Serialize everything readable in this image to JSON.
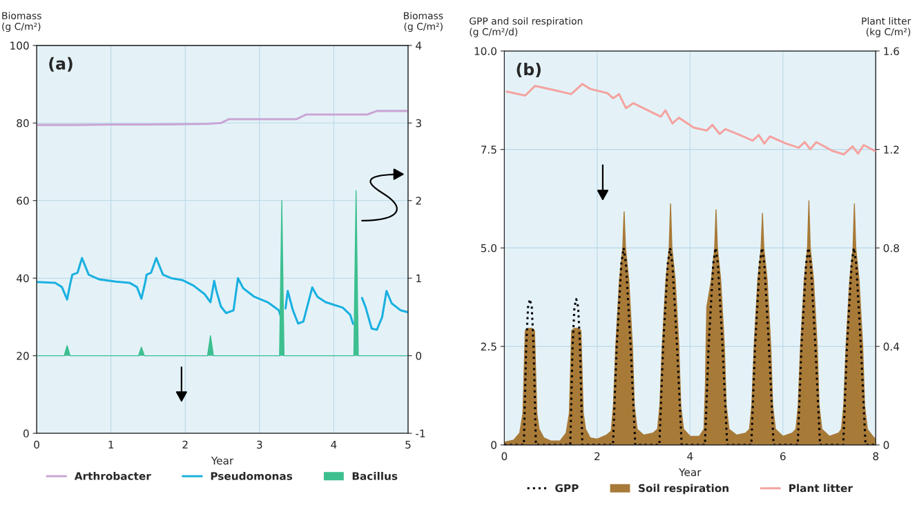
{
  "chart_data": [
    {
      "type": "line",
      "annotations": [
        "(a)"
      ],
      "xlabel": "Year",
      "ylabel": "Biomass\n(g C/m²)",
      "y2label": "Biomass\n(g C/m²)",
      "xlim": [
        0,
        5
      ],
      "xticks": [
        0,
        1,
        2,
        3,
        4,
        5
      ],
      "ylim": [
        0,
        100
      ],
      "yticks": [
        0,
        20,
        40,
        60,
        80,
        100
      ],
      "y2lim": [
        -1,
        4
      ],
      "y2ticks": [
        -1,
        0,
        1,
        2,
        3,
        4
      ],
      "grid": true,
      "legend": "bottom",
      "series": [
        {
          "name": "Arthrobacter",
          "color": "#c9a6d4",
          "type": "line",
          "line_style": "solid",
          "x": [
            0,
            0.5,
            1,
            1.5,
            2,
            2.3,
            2.48,
            2.59,
            3,
            3.5,
            3.63,
            4,
            4.45,
            4.58,
            5
          ],
          "values": [
            79.5,
            79.5,
            79.6,
            79.6,
            79.7,
            79.8,
            80.0,
            81.0,
            81.0,
            81.0,
            82.2,
            82.2,
            82.2,
            83.1,
            83.1
          ]
        },
        {
          "name": "Pseudomonas",
          "color": "#1ab0e0",
          "type": "line",
          "line_style": "solid",
          "x": [
            0,
            0.25,
            0.34,
            0.41,
            0.45,
            0.48,
            0.55,
            0.61,
            0.7,
            0.84,
            1.07,
            1.25,
            1.35,
            1.41,
            1.46,
            1.48,
            1.54,
            1.61,
            1.7,
            1.81,
            1.96,
            2.11,
            2.26,
            2.34,
            2.39,
            2.42,
            2.48,
            2.55,
            2.65,
            2.71,
            2.78,
            2.93,
            3.11,
            3.26,
            3.29,
            3.32,
            3.35,
            3.38,
            3.45,
            3.52,
            3.59,
            3.71,
            3.78,
            3.89,
            4.12,
            4.22,
            4.26,
            4.3,
            4.38,
            4.43,
            4.51,
            4.58,
            4.65,
            4.71,
            4.78,
            4.9,
            5
          ],
          "values": [
            39.0,
            38.8,
            37.7,
            34.5,
            38.4,
            40.9,
            41.4,
            45.2,
            40.9,
            39.7,
            39.1,
            38.8,
            37.7,
            34.7,
            38.8,
            40.9,
            41.4,
            45.2,
            40.9,
            40.0,
            39.5,
            38.1,
            35.9,
            33.8,
            39.3,
            36.7,
            32.7,
            31.0,
            31.7,
            40.0,
            37.4,
            35.2,
            33.8,
            31.7,
            29.9,
            null,
            32.2,
            36.7,
            31.7,
            28.3,
            28.8,
            37.6,
            35.2,
            33.8,
            32.4,
            30.6,
            28.2,
            null,
            34.9,
            32.4,
            27.0,
            26.7,
            29.9,
            36.7,
            33.5,
            31.7,
            31.2
          ]
        },
        {
          "name": "Bacillus",
          "color": "#3dbf8f",
          "type": "area",
          "axis": "y2",
          "x": [
            0,
            0.37,
            0.41,
            0.45,
            1.37,
            1.41,
            1.45,
            2.3,
            2.34,
            2.38,
            3.27,
            3.3,
            3.33,
            4.27,
            4.3,
            4.33,
            5
          ],
          "values": [
            0,
            0,
            0.13,
            0,
            0,
            0.11,
            0,
            0,
            0.26,
            0,
            0,
            2.0,
            0,
            0,
            2.13,
            0,
            0
          ]
        }
      ]
    },
    {
      "type": "line",
      "annotations": [
        "(b)"
      ],
      "xlabel": "Year",
      "ylabel": "GPP and soil respiration\n(g C/m²/d)",
      "y2label": "Plant litter\n(kg C/m²)",
      "xlim": [
        0,
        8
      ],
      "xticks": [
        0,
        2,
        4,
        6,
        8
      ],
      "ylim": [
        0,
        10
      ],
      "yticks": [
        0,
        2.5,
        {
          "value": 5,
          "label": "5.0"
        },
        {
          "value": 7.5,
          "label": "7.5"
        },
        {
          "value": 10,
          "label": "10.0"
        }
      ],
      "y2lim": [
        0,
        1.6
      ],
      "y2ticks": [
        0,
        0.4,
        0.8,
        1.2,
        1.6
      ],
      "grid": true,
      "legend": "bottom",
      "series": [
        {
          "name": "GPP",
          "color": "#000000",
          "type": "line",
          "line_style": "dotted",
          "x": [
            0,
            0.42,
            0.47,
            0.51,
            0.55,
            0.59,
            0.63,
            0.68,
            1.42,
            1.47,
            1.51,
            1.55,
            1.59,
            1.63,
            1.68,
            2.34,
            2.42,
            2.52,
            2.57,
            2.62,
            2.72,
            2.82,
            3.34,
            3.42,
            3.52,
            3.57,
            3.62,
            3.72,
            3.82,
            4.32,
            4.4,
            4.5,
            4.55,
            4.6,
            4.7,
            4.8,
            5.32,
            5.4,
            5.5,
            5.55,
            5.6,
            5.7,
            5.8,
            6.32,
            6.4,
            6.5,
            6.55,
            6.6,
            6.7,
            6.8,
            7.3,
            7.38,
            7.48,
            7.53,
            7.58,
            7.68,
            7.78,
            8
          ],
          "values": [
            0,
            0,
            2.5,
            3.5,
            3.7,
            3.5,
            2.5,
            0,
            0,
            2.5,
            3.5,
            3.7,
            3.5,
            2.5,
            0,
            0,
            2.5,
            4.6,
            5,
            4.6,
            2.5,
            0,
            0,
            2.5,
            4.6,
            5,
            4.6,
            2.5,
            0,
            0,
            2.5,
            4.6,
            5,
            4.6,
            2.5,
            0,
            0,
            2.5,
            4.6,
            5,
            4.6,
            2.5,
            0,
            0,
            2.5,
            4.6,
            5,
            4.6,
            2.5,
            0,
            0,
            2.5,
            4.6,
            5,
            4.6,
            2.5,
            0,
            0
          ]
        },
        {
          "name": "Soil respiration",
          "color": "#a87a38",
          "type": "area",
          "x": [
            0,
            0.2,
            0.33,
            0.4,
            0.45,
            0.5,
            0.6,
            0.65,
            0.7,
            0.75,
            0.85,
            1.0,
            1.2,
            1.33,
            1.4,
            1.45,
            1.5,
            1.6,
            1.65,
            1.7,
            1.75,
            1.85,
            2.0,
            2.2,
            2.3,
            2.35,
            2.4,
            2.48,
            2.55,
            2.58,
            2.61,
            2.68,
            2.76,
            2.8,
            2.86,
            3.0,
            3.2,
            3.3,
            3.35,
            3.4,
            3.48,
            3.55,
            3.58,
            3.61,
            3.68,
            3.76,
            3.8,
            3.86,
            4.0,
            4.2,
            4.3,
            4.33,
            4.36,
            4.46,
            4.53,
            4.56,
            4.59,
            4.66,
            4.74,
            4.78,
            4.84,
            5.0,
            5.2,
            5.28,
            5.33,
            5.38,
            5.46,
            5.53,
            5.56,
            5.59,
            5.66,
            5.74,
            5.78,
            5.84,
            6.0,
            6.2,
            6.28,
            6.33,
            6.38,
            6.46,
            6.53,
            6.56,
            6.59,
            6.66,
            6.74,
            6.78,
            6.84,
            7.0,
            7.2,
            7.26,
            7.31,
            7.36,
            7.44,
            7.51,
            7.54,
            7.57,
            7.64,
            7.72,
            7.76,
            7.82,
            7.95,
            8.0
          ],
          "values": [
            0.07,
            0.12,
            0.3,
            0.8,
            2.9,
            2.96,
            2.96,
            2.9,
            0.8,
            0.4,
            0.18,
            0.1,
            0.1,
            0.3,
            0.8,
            2.9,
            2.96,
            2.96,
            2.9,
            0.8,
            0.4,
            0.18,
            0.15,
            0.25,
            0.35,
            1.0,
            2.5,
            4.2,
            5.0,
            5.92,
            5.0,
            4.2,
            2.5,
            1.0,
            0.4,
            0.25,
            0.3,
            0.4,
            1.0,
            2.5,
            4.2,
            5.0,
            6.12,
            5.0,
            4.2,
            2.5,
            1.0,
            0.4,
            0.22,
            0.22,
            0.4,
            1.5,
            3.5,
            4.2,
            5.0,
            5.97,
            5.0,
            4.2,
            2.5,
            1.0,
            0.4,
            0.25,
            0.3,
            0.4,
            1.0,
            2.5,
            4.2,
            5.0,
            5.88,
            5.0,
            4.2,
            2.5,
            1.0,
            0.4,
            0.22,
            0.3,
            0.4,
            1.0,
            2.5,
            4.2,
            5.0,
            6.2,
            5.0,
            4.2,
            2.5,
            1.0,
            0.4,
            0.22,
            0.3,
            0.4,
            1.0,
            2.5,
            4.2,
            5.0,
            6.12,
            5.0,
            4.2,
            2.5,
            1.0,
            0.4,
            0.2,
            0.15
          ]
        },
        {
          "name": "Plant litter",
          "color": "#f4a3a0",
          "type": "line",
          "line_style": "solid",
          "axis": "y2",
          "x": [
            0.05,
            0.45,
            0.66,
            1.1,
            1.44,
            1.68,
            1.85,
            2.22,
            2.34,
            2.47,
            2.62,
            2.78,
            3.09,
            3.37,
            3.47,
            3.62,
            3.76,
            4.08,
            4.36,
            4.48,
            4.64,
            4.76,
            5.07,
            5.35,
            5.48,
            5.6,
            5.72,
            6.07,
            6.34,
            6.47,
            6.59,
            6.72,
            7.06,
            7.31,
            7.5,
            7.62,
            7.74,
            7.99
          ],
          "values": [
            1.435,
            1.419,
            1.458,
            1.44,
            1.425,
            1.466,
            1.446,
            1.429,
            1.408,
            1.425,
            1.368,
            1.388,
            1.359,
            1.333,
            1.359,
            1.306,
            1.329,
            1.289,
            1.277,
            1.3,
            1.263,
            1.283,
            1.259,
            1.236,
            1.259,
            1.224,
            1.253,
            1.224,
            1.207,
            1.23,
            1.201,
            1.23,
            1.195,
            1.18,
            1.213,
            1.183,
            1.218,
            1.193
          ]
        }
      ]
    }
  ]
}
